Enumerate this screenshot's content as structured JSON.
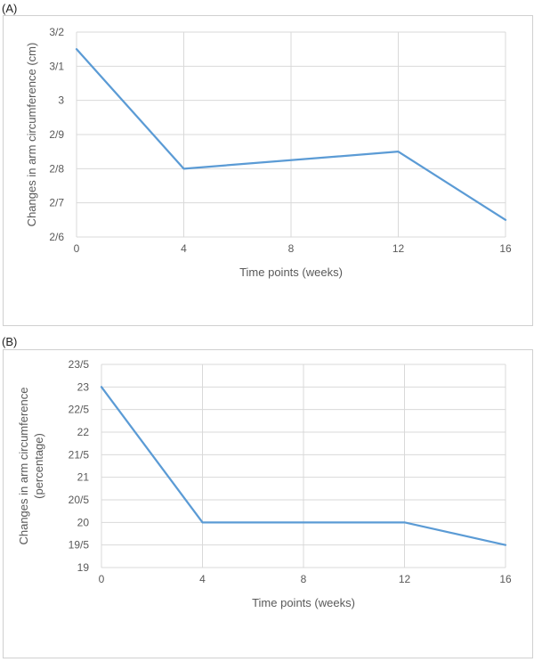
{
  "panels": [
    {
      "label": "(A)"
    },
    {
      "label": "(B)"
    }
  ],
  "chart_data": [
    {
      "type": "line",
      "title": "",
      "xlabel": "Time points (weeks)",
      "ylabel": "Changes in arm circumference (cm)",
      "ylabel_lines": [
        "Changes in arm circumference (cm)"
      ],
      "x": [
        0,
        4,
        12,
        16
      ],
      "values": [
        3.15,
        2.8,
        2.85,
        2.65
      ],
      "xlim": [
        0,
        16
      ],
      "ylim": [
        2.6,
        3.2
      ],
      "xticks": [
        0,
        4,
        8,
        12,
        16
      ],
      "xtick_labels": [
        "0",
        "4",
        "8",
        "12",
        "16"
      ],
      "yticks": [
        2.6,
        2.7,
        2.8,
        2.9,
        3.0,
        3.1,
        3.2
      ],
      "ytick_labels": [
        "2/6",
        "2/7",
        "2/8",
        "2/9",
        "3",
        "3/1",
        "3/2"
      ],
      "grid": true,
      "line_color": "#5b9bd5",
      "grid_color": "#d9d9d9"
    },
    {
      "type": "line",
      "title": "",
      "xlabel": "Time points (weeks)",
      "ylabel": "Changes in arm circumference (percentage)",
      "ylabel_lines": [
        "Changes in arm circumference",
        "(percentage)"
      ],
      "x": [
        0,
        4,
        12,
        16
      ],
      "values": [
        23,
        20,
        20,
        19.5
      ],
      "xlim": [
        0,
        16
      ],
      "ylim": [
        19,
        23.5
      ],
      "xticks": [
        0,
        4,
        8,
        12,
        16
      ],
      "xtick_labels": [
        "0",
        "4",
        "8",
        "12",
        "16"
      ],
      "yticks": [
        19,
        19.5,
        20,
        20.5,
        21,
        21.5,
        22,
        22.5,
        23,
        23.5
      ],
      "ytick_labels": [
        "19",
        "19/5",
        "20",
        "20/5",
        "21",
        "21/5",
        "22",
        "22/5",
        "23",
        "23/5"
      ],
      "grid": true,
      "line_color": "#5b9bd5",
      "grid_color": "#d9d9d9"
    }
  ]
}
